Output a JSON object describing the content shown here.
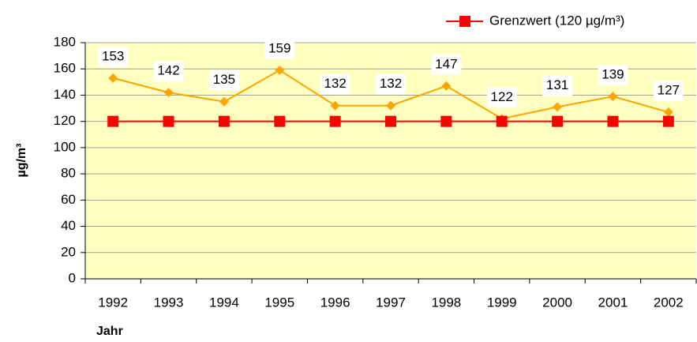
{
  "chart_data": {
    "type": "line",
    "y_label": "µg/m³",
    "x_label": "Jahr",
    "categories": [
      "1992",
      "1993",
      "1994",
      "1995",
      "1996",
      "1997",
      "1998",
      "1999",
      "2000",
      "2001",
      "2002"
    ],
    "series": [
      {
        "color": "#ffa500",
        "marker": "diamond",
        "data_labels": true,
        "values": [
          153,
          142,
          135,
          159,
          132,
          132,
          147,
          122,
          131,
          139,
          127
        ]
      },
      {
        "name": "Grenzwert (120 µg/m³)",
        "color": "#ff0000",
        "marker": "square",
        "values": [
          120,
          120,
          120,
          120,
          120,
          120,
          120,
          120,
          120,
          120,
          120
        ]
      }
    ],
    "ylim": [
      0,
      180
    ],
    "yticks": [
      0,
      20,
      40,
      60,
      80,
      100,
      120,
      140,
      160,
      180
    ],
    "grid": true,
    "legend": "top-right",
    "plot_background": "#ffffc0"
  }
}
